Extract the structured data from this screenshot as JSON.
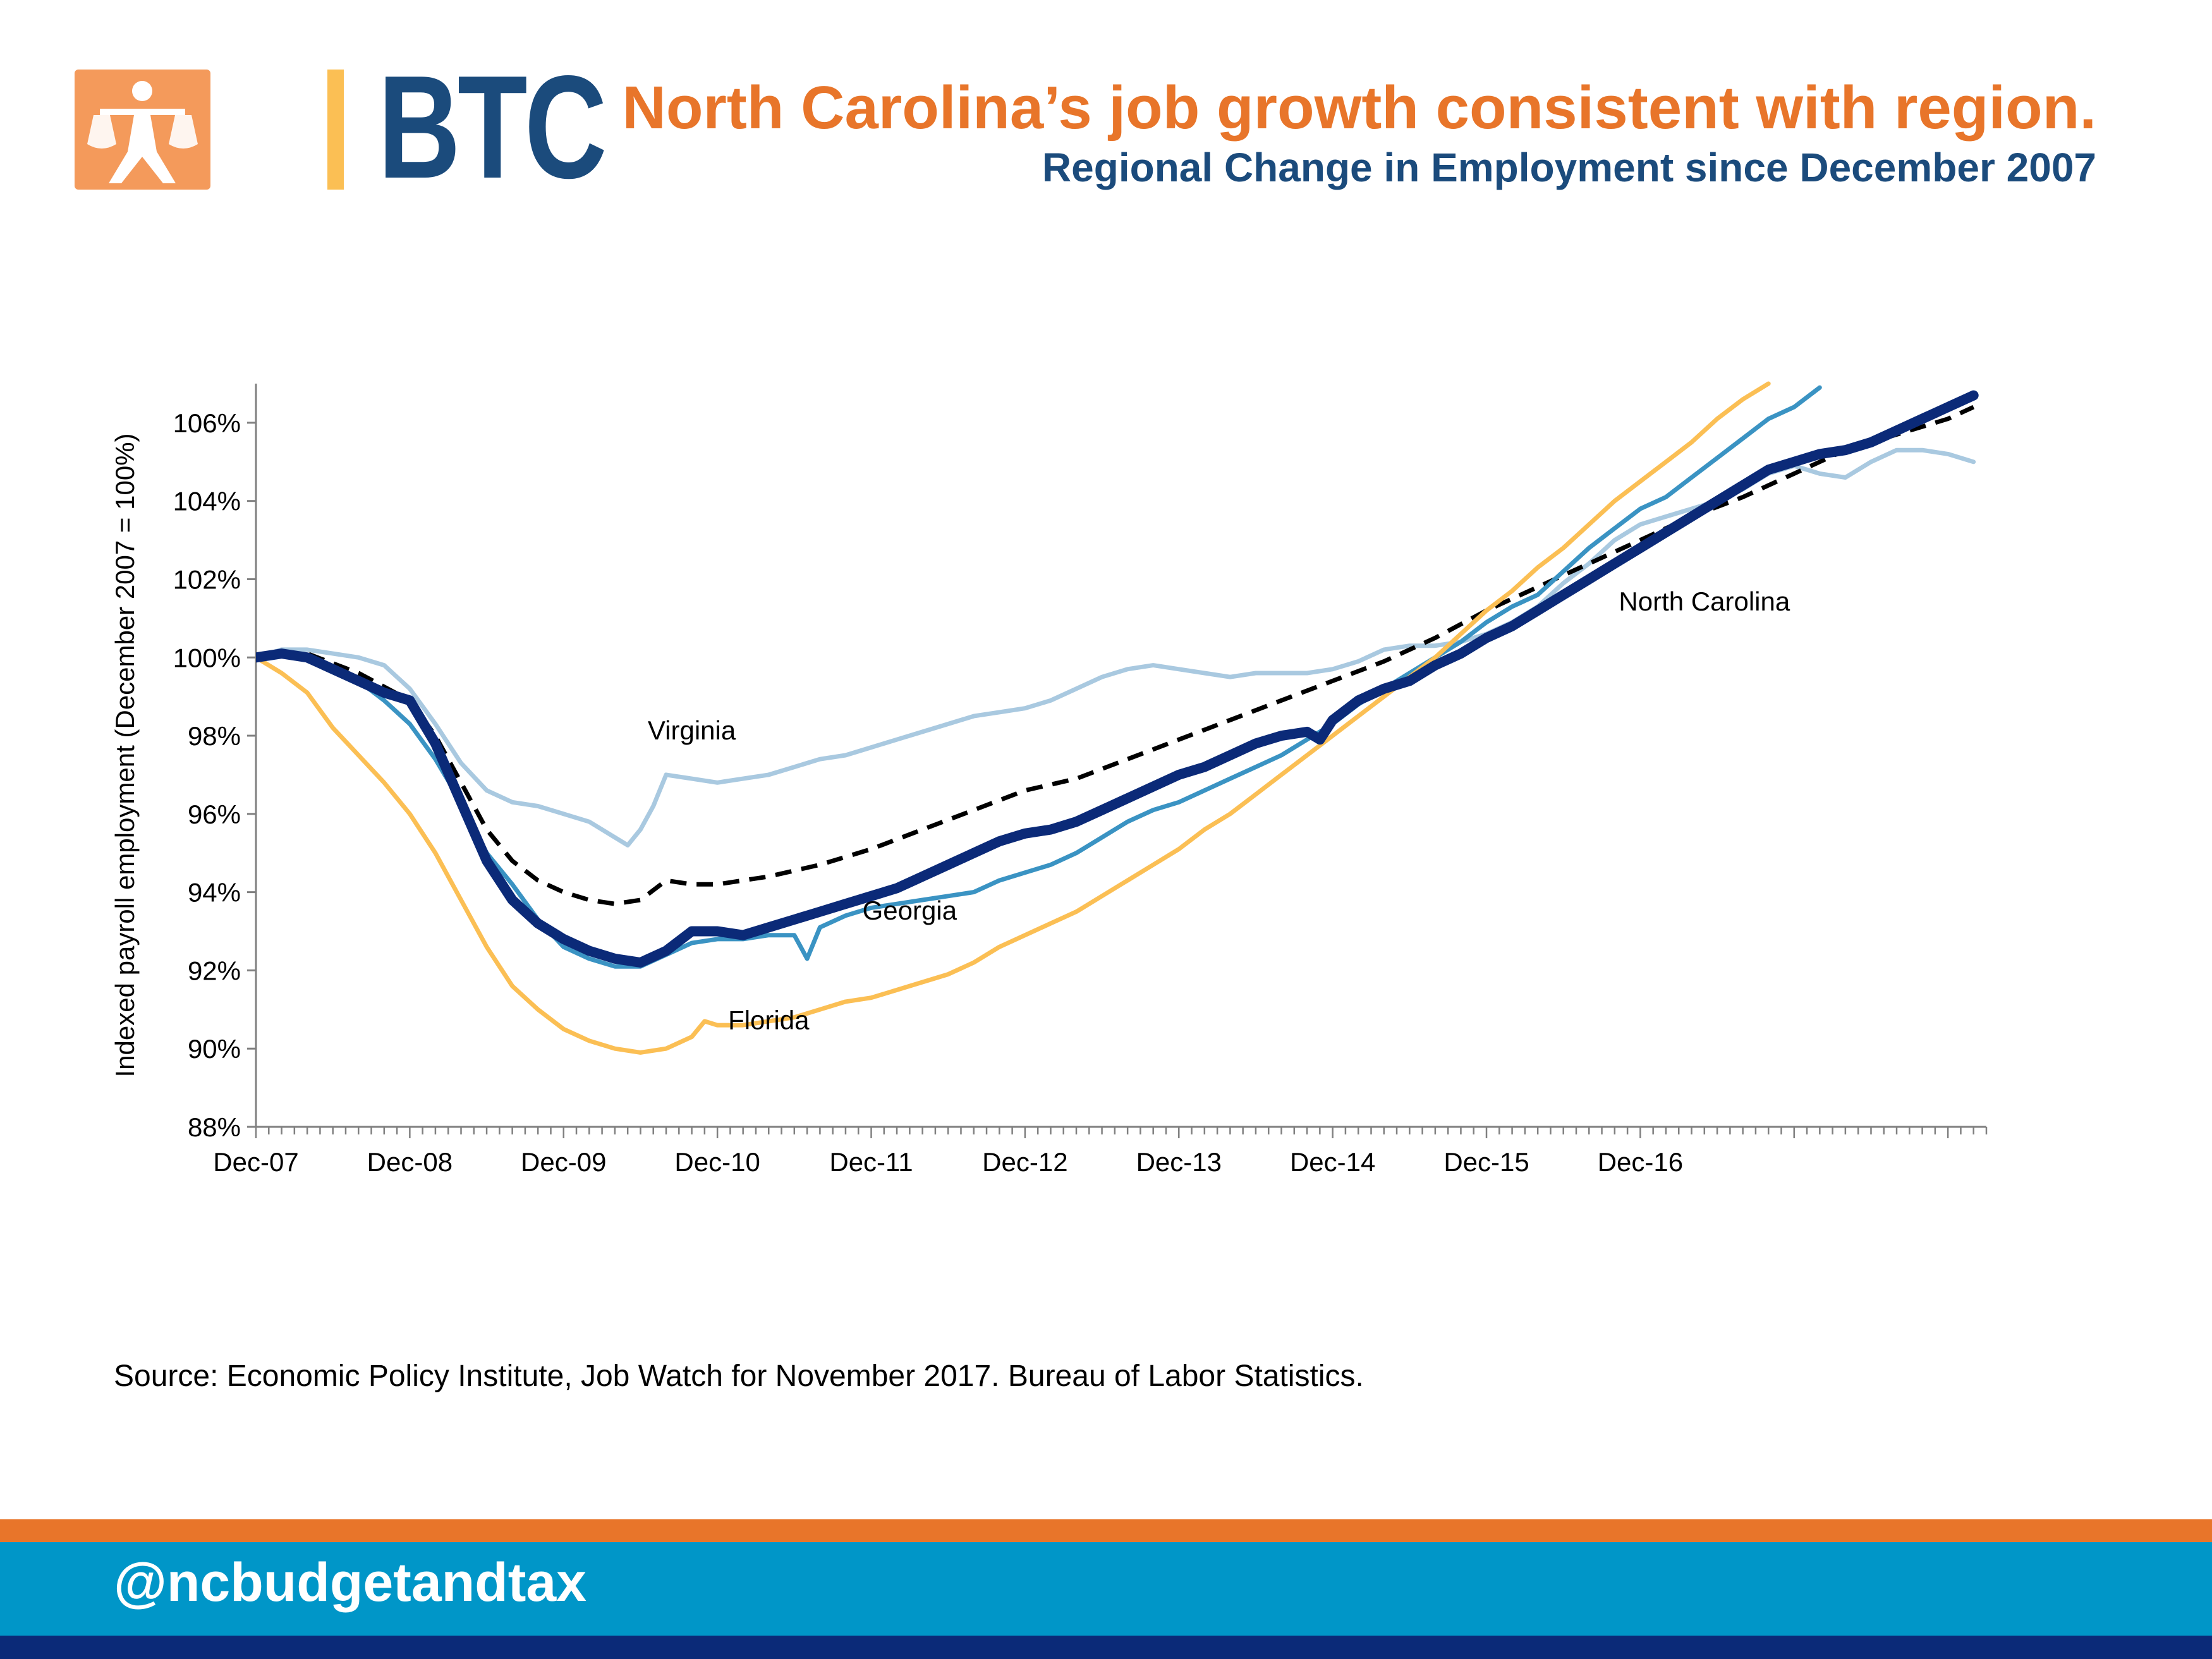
{
  "brand": {
    "logo_text": "BTC",
    "logo_icon": "btc-justice-figure-icon",
    "handle": "@ncbudgetandtax",
    "colors": {
      "orange": "#E8752A",
      "yellow": "#FBBF54",
      "navy": "#1B4B7C",
      "blue": "#0096C8",
      "dark_navy": "#0B2A78"
    }
  },
  "header": {
    "title": "North Carolina’s job growth consistent with region.",
    "subtitle": "Regional Change in Employment since December 2007"
  },
  "footer": {
    "source": "Source: Economic Policy Institute, Job Watch for November 2017.  Bureau of Labor Statistics."
  },
  "chart_data": {
    "type": "line",
    "title": "",
    "ylabel": "Indexed payroll employment  (December 2007 = 100%)",
    "xlabel": "",
    "ylim": [
      88,
      107
    ],
    "yticks": [
      "88%",
      "90%",
      "92%",
      "94%",
      "96%",
      "98%",
      "100%",
      "102%",
      "104%",
      "106%"
    ],
    "xticks": [
      "Dec-07",
      "Dec-08",
      "Dec-09",
      "Dec-10",
      "Dec-11",
      "Dec-12",
      "Dec-13",
      "Dec-14",
      "Dec-15",
      "Dec-16"
    ],
    "months": 120,
    "grid": false,
    "legend": "none (inline labels)",
    "series": [
      {
        "name": "Virginia",
        "color": "#A9C9E0",
        "style": "solid",
        "points": [
          [
            0,
            100
          ],
          [
            2,
            100.2
          ],
          [
            4,
            100.2
          ],
          [
            6,
            100.1
          ],
          [
            8,
            100.0
          ],
          [
            10,
            99.8
          ],
          [
            12,
            99.2
          ],
          [
            14,
            98.3
          ],
          [
            16,
            97.3
          ],
          [
            18,
            96.6
          ],
          [
            20,
            96.3
          ],
          [
            22,
            96.2
          ],
          [
            24,
            96.0
          ],
          [
            26,
            95.8
          ],
          [
            28,
            95.4
          ],
          [
            29,
            95.2
          ],
          [
            30,
            95.6
          ],
          [
            31,
            96.2
          ],
          [
            32,
            97.0
          ],
          [
            34,
            96.9
          ],
          [
            36,
            96.8
          ],
          [
            38,
            96.9
          ],
          [
            40,
            97.0
          ],
          [
            42,
            97.2
          ],
          [
            44,
            97.4
          ],
          [
            46,
            97.5
          ],
          [
            48,
            97.7
          ],
          [
            50,
            97.9
          ],
          [
            52,
            98.1
          ],
          [
            54,
            98.3
          ],
          [
            56,
            98.5
          ],
          [
            58,
            98.6
          ],
          [
            60,
            98.7
          ],
          [
            62,
            98.9
          ],
          [
            64,
            99.2
          ],
          [
            66,
            99.5
          ],
          [
            68,
            99.7
          ],
          [
            70,
            99.8
          ],
          [
            72,
            99.7
          ],
          [
            74,
            99.6
          ],
          [
            76,
            99.5
          ],
          [
            78,
            99.6
          ],
          [
            80,
            99.6
          ],
          [
            82,
            99.6
          ],
          [
            84,
            99.7
          ],
          [
            86,
            99.9
          ],
          [
            88,
            100.2
          ],
          [
            90,
            100.3
          ],
          [
            92,
            100.3
          ],
          [
            94,
            100.4
          ],
          [
            96,
            100.6
          ],
          [
            98,
            100.9
          ],
          [
            100,
            101.3
          ],
          [
            102,
            101.9
          ],
          [
            104,
            102.4
          ],
          [
            106,
            103.0
          ],
          [
            108,
            103.4
          ],
          [
            110,
            103.6
          ],
          [
            112,
            103.8
          ],
          [
            114,
            104.0
          ],
          [
            116,
            104.3
          ],
          [
            118,
            104.7
          ],
          [
            120,
            104.9
          ],
          [
            122,
            104.7
          ],
          [
            124,
            104.6
          ],
          [
            126,
            105.0
          ],
          [
            128,
            105.3
          ],
          [
            130,
            105.3
          ],
          [
            132,
            105.2
          ],
          [
            134,
            105.0
          ]
        ]
      },
      {
        "name": "",
        "color": "#000000",
        "style": "dashed",
        "points": [
          [
            0,
            100
          ],
          [
            4,
            100.1
          ],
          [
            8,
            99.6
          ],
          [
            12,
            98.9
          ],
          [
            14,
            98.0
          ],
          [
            16,
            96.8
          ],
          [
            18,
            95.6
          ],
          [
            20,
            94.8
          ],
          [
            22,
            94.3
          ],
          [
            24,
            94.0
          ],
          [
            26,
            93.8
          ],
          [
            28,
            93.7
          ],
          [
            30,
            93.8
          ],
          [
            32,
            94.3
          ],
          [
            34,
            94.2
          ],
          [
            36,
            94.2
          ],
          [
            40,
            94.4
          ],
          [
            44,
            94.7
          ],
          [
            48,
            95.1
          ],
          [
            52,
            95.6
          ],
          [
            56,
            96.1
          ],
          [
            60,
            96.6
          ],
          [
            64,
            96.9
          ],
          [
            68,
            97.4
          ],
          [
            72,
            97.9
          ],
          [
            76,
            98.4
          ],
          [
            80,
            98.9
          ],
          [
            84,
            99.4
          ],
          [
            88,
            99.9
          ],
          [
            92,
            100.5
          ],
          [
            96,
            101.2
          ],
          [
            100,
            101.8
          ],
          [
            104,
            102.4
          ],
          [
            108,
            103.0
          ],
          [
            112,
            103.6
          ],
          [
            116,
            104.1
          ],
          [
            120,
            104.7
          ],
          [
            124,
            105.3
          ],
          [
            128,
            105.7
          ],
          [
            132,
            106.1
          ],
          [
            134,
            106.4
          ]
        ]
      },
      {
        "name": "Georgia",
        "color": "#3A93C3",
        "style": "solid",
        "points": [
          [
            0,
            100
          ],
          [
            2,
            100.1
          ],
          [
            4,
            100.0
          ],
          [
            6,
            99.7
          ],
          [
            8,
            99.4
          ],
          [
            10,
            98.9
          ],
          [
            12,
            98.3
          ],
          [
            14,
            97.4
          ],
          [
            16,
            96.3
          ],
          [
            18,
            95.0
          ],
          [
            20,
            94.2
          ],
          [
            22,
            93.3
          ],
          [
            24,
            92.6
          ],
          [
            26,
            92.3
          ],
          [
            28,
            92.1
          ],
          [
            30,
            92.1
          ],
          [
            32,
            92.4
          ],
          [
            34,
            92.7
          ],
          [
            36,
            92.8
          ],
          [
            38,
            92.8
          ],
          [
            40,
            92.9
          ],
          [
            42,
            92.9
          ],
          [
            43,
            92.3
          ],
          [
            44,
            93.1
          ],
          [
            46,
            93.4
          ],
          [
            48,
            93.6
          ],
          [
            50,
            93.7
          ],
          [
            52,
            93.8
          ],
          [
            54,
            93.9
          ],
          [
            56,
            94.0
          ],
          [
            58,
            94.3
          ],
          [
            60,
            94.5
          ],
          [
            62,
            94.7
          ],
          [
            64,
            95.0
          ],
          [
            66,
            95.4
          ],
          [
            68,
            95.8
          ],
          [
            70,
            96.1
          ],
          [
            72,
            96.3
          ],
          [
            74,
            96.6
          ],
          [
            76,
            96.9
          ],
          [
            78,
            97.2
          ],
          [
            80,
            97.5
          ],
          [
            82,
            97.9
          ],
          [
            84,
            98.3
          ],
          [
            86,
            98.8
          ],
          [
            88,
            99.2
          ],
          [
            90,
            99.6
          ],
          [
            92,
            100.0
          ],
          [
            94,
            100.4
          ],
          [
            96,
            100.9
          ],
          [
            98,
            101.3
          ],
          [
            100,
            101.6
          ],
          [
            102,
            102.2
          ],
          [
            104,
            102.8
          ],
          [
            106,
            103.3
          ],
          [
            108,
            103.8
          ],
          [
            110,
            104.1
          ],
          [
            112,
            104.6
          ],
          [
            114,
            105.1
          ],
          [
            116,
            105.6
          ],
          [
            118,
            106.1
          ],
          [
            120,
            106.4
          ],
          [
            122,
            106.9
          ]
        ]
      },
      {
        "name": "Florida",
        "color": "#FBBF54",
        "style": "solid",
        "points": [
          [
            0,
            100
          ],
          [
            2,
            99.6
          ],
          [
            4,
            99.1
          ],
          [
            6,
            98.2
          ],
          [
            8,
            97.5
          ],
          [
            10,
            96.8
          ],
          [
            12,
            96.0
          ],
          [
            14,
            95.0
          ],
          [
            16,
            93.8
          ],
          [
            18,
            92.6
          ],
          [
            20,
            91.6
          ],
          [
            22,
            91.0
          ],
          [
            24,
            90.5
          ],
          [
            26,
            90.2
          ],
          [
            28,
            90.0
          ],
          [
            30,
            89.9
          ],
          [
            32,
            90.0
          ],
          [
            34,
            90.3
          ],
          [
            35,
            90.7
          ],
          [
            36,
            90.6
          ],
          [
            38,
            90.6
          ],
          [
            40,
            90.7
          ],
          [
            42,
            90.8
          ],
          [
            44,
            91.0
          ],
          [
            46,
            91.2
          ],
          [
            48,
            91.3
          ],
          [
            50,
            91.5
          ],
          [
            52,
            91.7
          ],
          [
            54,
            91.9
          ],
          [
            56,
            92.2
          ],
          [
            58,
            92.6
          ],
          [
            60,
            92.9
          ],
          [
            62,
            93.2
          ],
          [
            64,
            93.5
          ],
          [
            66,
            93.9
          ],
          [
            68,
            94.3
          ],
          [
            70,
            94.7
          ],
          [
            72,
            95.1
          ],
          [
            74,
            95.6
          ],
          [
            76,
            96.0
          ],
          [
            78,
            96.5
          ],
          [
            80,
            97.0
          ],
          [
            82,
            97.5
          ],
          [
            84,
            98.0
          ],
          [
            86,
            98.5
          ],
          [
            88,
            99.0
          ],
          [
            90,
            99.5
          ],
          [
            92,
            100.0
          ],
          [
            94,
            100.6
          ],
          [
            96,
            101.2
          ],
          [
            98,
            101.7
          ],
          [
            100,
            102.3
          ],
          [
            102,
            102.8
          ],
          [
            104,
            103.4
          ],
          [
            106,
            104.0
          ],
          [
            108,
            104.5
          ],
          [
            110,
            105.0
          ],
          [
            112,
            105.5
          ],
          [
            114,
            106.1
          ],
          [
            116,
            106.6
          ],
          [
            118,
            107.0
          ]
        ]
      },
      {
        "name": "North Carolina",
        "color": "#0B2A78",
        "style": "solid-thick",
        "points": [
          [
            0,
            100
          ],
          [
            2,
            100.1
          ],
          [
            4,
            100.0
          ],
          [
            6,
            99.7
          ],
          [
            8,
            99.4
          ],
          [
            10,
            99.1
          ],
          [
            12,
            98.9
          ],
          [
            14,
            97.8
          ],
          [
            16,
            96.3
          ],
          [
            18,
            94.8
          ],
          [
            20,
            93.8
          ],
          [
            22,
            93.2
          ],
          [
            24,
            92.8
          ],
          [
            26,
            92.5
          ],
          [
            28,
            92.3
          ],
          [
            30,
            92.2
          ],
          [
            32,
            92.5
          ],
          [
            34,
            93.0
          ],
          [
            36,
            93.0
          ],
          [
            38,
            92.9
          ],
          [
            40,
            93.1
          ],
          [
            42,
            93.3
          ],
          [
            44,
            93.5
          ],
          [
            46,
            93.7
          ],
          [
            48,
            93.9
          ],
          [
            50,
            94.1
          ],
          [
            52,
            94.4
          ],
          [
            54,
            94.7
          ],
          [
            56,
            95.0
          ],
          [
            58,
            95.3
          ],
          [
            60,
            95.5
          ],
          [
            62,
            95.6
          ],
          [
            64,
            95.8
          ],
          [
            66,
            96.1
          ],
          [
            68,
            96.4
          ],
          [
            70,
            96.7
          ],
          [
            72,
            97.0
          ],
          [
            74,
            97.2
          ],
          [
            76,
            97.5
          ],
          [
            78,
            97.8
          ],
          [
            80,
            98.0
          ],
          [
            82,
            98.1
          ],
          [
            83,
            97.9
          ],
          [
            84,
            98.4
          ],
          [
            86,
            98.9
          ],
          [
            88,
            99.2
          ],
          [
            90,
            99.4
          ],
          [
            92,
            99.8
          ],
          [
            94,
            100.1
          ],
          [
            96,
            100.5
          ],
          [
            98,
            100.8
          ],
          [
            100,
            101.2
          ],
          [
            102,
            101.6
          ],
          [
            104,
            102.0
          ],
          [
            106,
            102.4
          ],
          [
            108,
            102.8
          ],
          [
            110,
            103.2
          ],
          [
            112,
            103.6
          ],
          [
            114,
            104.0
          ],
          [
            116,
            104.4
          ],
          [
            118,
            104.8
          ],
          [
            120,
            105.0
          ],
          [
            122,
            105.2
          ],
          [
            124,
            105.3
          ],
          [
            126,
            105.5
          ],
          [
            128,
            105.8
          ],
          [
            130,
            106.1
          ],
          [
            132,
            106.4
          ],
          [
            134,
            106.7
          ]
        ]
      }
    ],
    "annotations": [
      {
        "text": "Virginia",
        "month": 34,
        "value": 97.9
      },
      {
        "text": "Georgia",
        "month": 51,
        "value": 93.3
      },
      {
        "text": "Florida",
        "month": 40,
        "value": 90.5
      },
      {
        "text": "North Carolina",
        "month": 113,
        "value": 101.2
      }
    ]
  }
}
